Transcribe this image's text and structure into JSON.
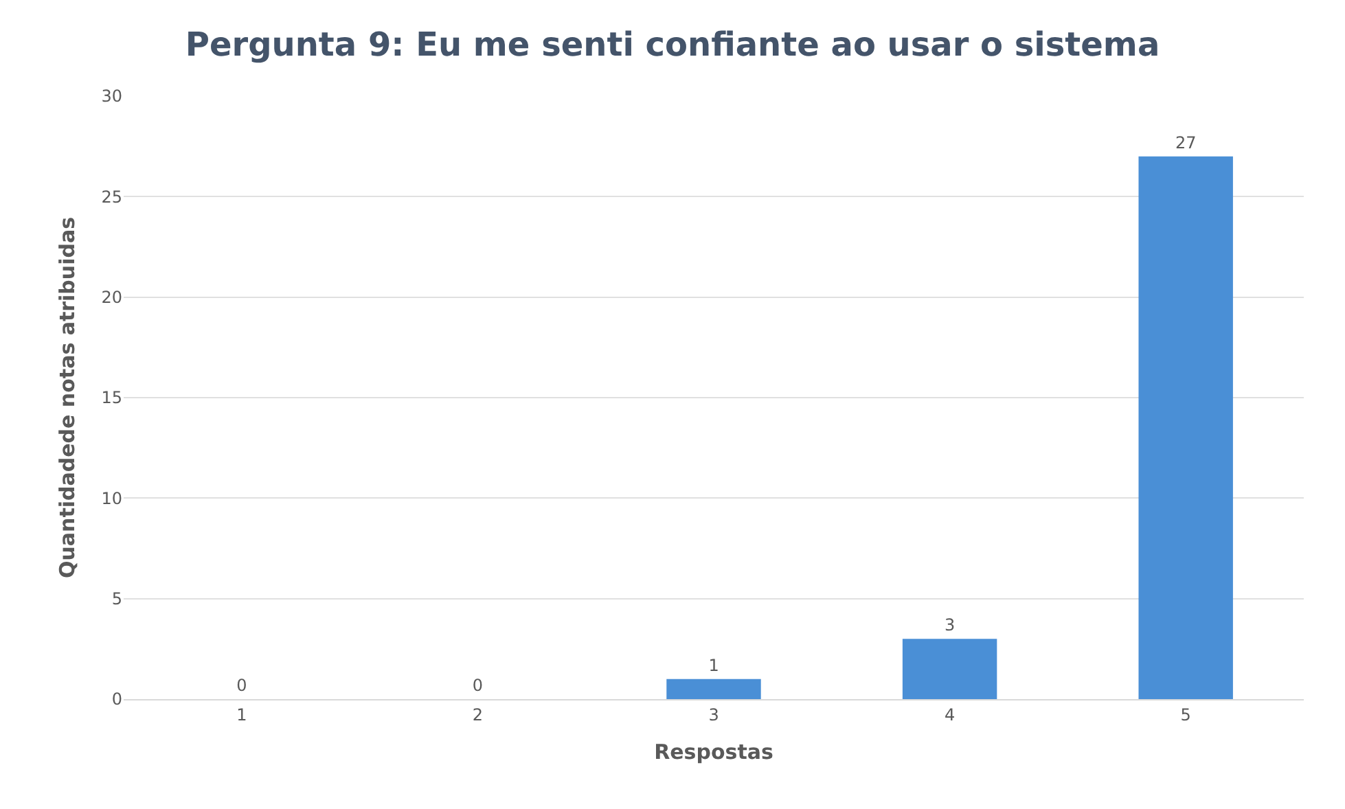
{
  "chart_data": {
    "type": "bar",
    "title": "Pergunta 9: Eu me senti confiante ao usar o sistema",
    "xlabel": "Respostas",
    "ylabel": "Quantidadede notas atribuidas",
    "categories": [
      "1",
      "2",
      "3",
      "4",
      "5"
    ],
    "values": [
      0,
      0,
      1,
      3,
      27
    ],
    "color": "#4a8fd6",
    "ylim": [
      0,
      30
    ],
    "yticks": [
      0,
      5,
      10,
      15,
      20,
      25,
      30
    ],
    "grid": "y",
    "data_labels": true
  }
}
